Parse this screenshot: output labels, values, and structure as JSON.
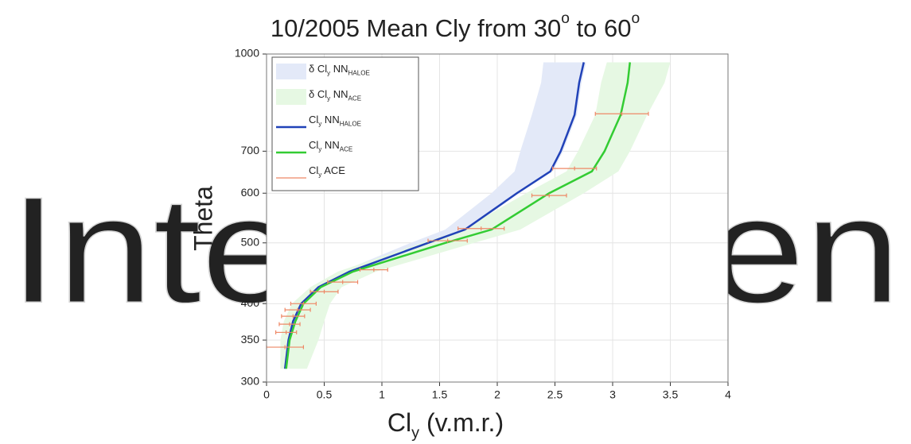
{
  "chart_data": {
    "type": "line",
    "title": [
      "10/2005 Mean Cly from 30",
      "o",
      " to 60",
      "o"
    ],
    "xlabel": [
      "Cl",
      "y",
      " (v.m.r.)"
    ],
    "ylabel": "Theta",
    "watermark": "IntechOpen",
    "orientation": "horizontal",
    "xlim": [
      0,
      4
    ],
    "xticks": [
      0,
      0.5,
      1,
      1.5,
      2,
      2.5,
      3,
      3.5,
      4
    ],
    "ylim": [
      300,
      1000
    ],
    "yticks": [
      300,
      350,
      400,
      500,
      600,
      700,
      1000
    ],
    "ylog": true,
    "grid": true,
    "legend": "upper left",
    "series": [
      {
        "name": [
          "δ Cl",
          "y",
          " NN",
          "HALOE"
        ],
        "type": "area",
        "color": "#e3e9f8",
        "y": [
          315,
          350,
          375,
          400,
          425,
          450,
          500,
          525,
          600,
          650,
          700,
          800,
          900,
          970
        ],
        "values": [
          0.14,
          0.16,
          0.2,
          0.26,
          0.4,
          0.65,
          1.25,
          1.55,
          1.95,
          2.15,
          2.2,
          2.3,
          2.38,
          2.4
        ],
        "high": [
          0.18,
          0.21,
          0.25,
          0.32,
          0.47,
          0.74,
          1.42,
          1.74,
          2.19,
          2.48,
          2.57,
          2.69,
          2.73,
          2.77
        ]
      },
      {
        "name": [
          "δ Cl",
          "y",
          " NN",
          "ACE"
        ],
        "type": "area",
        "color": "#e6f8e3",
        "y": [
          315,
          350,
          375,
          400,
          425,
          450,
          500,
          525,
          600,
          650,
          700,
          800,
          900,
          970
        ],
        "values": [
          0.12,
          0.12,
          0.15,
          0.22,
          0.38,
          0.62,
          1.35,
          1.7,
          2.25,
          2.6,
          2.7,
          2.85,
          2.9,
          2.95
        ],
        "high": [
          0.35,
          0.45,
          0.5,
          0.55,
          0.65,
          0.95,
          1.8,
          2.2,
          2.75,
          3.05,
          3.15,
          3.3,
          3.45,
          3.5
        ]
      },
      {
        "name": [
          "Cl",
          "y",
          " NN",
          "HALOE"
        ],
        "type": "line",
        "color": "#2142b8",
        "y": [
          315,
          350,
          375,
          400,
          425,
          450,
          500,
          525,
          600,
          650,
          700,
          800,
          900,
          970
        ],
        "values": [
          0.16,
          0.19,
          0.23,
          0.3,
          0.45,
          0.72,
          1.4,
          1.72,
          2.17,
          2.46,
          2.55,
          2.67,
          2.71,
          2.75
        ]
      },
      {
        "name": [
          "Cl",
          "y",
          " NN",
          "ACE"
        ],
        "type": "line",
        "color": "#33cc33",
        "y": [
          315,
          350,
          375,
          400,
          425,
          450,
          500,
          525,
          600,
          650,
          700,
          800,
          900,
          970
        ],
        "values": [
          0.17,
          0.2,
          0.25,
          0.32,
          0.47,
          0.75,
          1.55,
          1.95,
          2.45,
          2.82,
          2.93,
          3.07,
          3.13,
          3.15
        ]
      },
      {
        "name": [
          "Cl",
          "y",
          " ACE"
        ],
        "type": "errorbar",
        "color": "#ee8866",
        "y": [
          341,
          360,
          371,
          382,
          391,
          400,
          418,
          433,
          453,
          504,
          527,
          595,
          657,
          803
        ],
        "values": [
          0.16,
          0.17,
          0.2,
          0.23,
          0.27,
          0.32,
          0.5,
          0.66,
          0.93,
          1.57,
          1.86,
          2.45,
          2.67,
          3.08
        ],
        "xerr": [
          0.16,
          0.09,
          0.09,
          0.1,
          0.11,
          0.11,
          0.12,
          0.13,
          0.12,
          0.17,
          0.2,
          0.15,
          0.19,
          0.23
        ]
      }
    ]
  }
}
